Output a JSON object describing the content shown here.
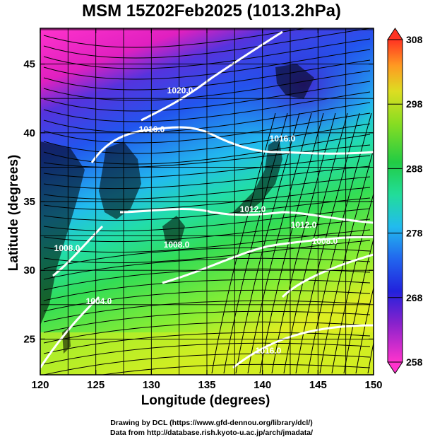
{
  "title": "MSM 15Z02Feb2025 (1013.2hPa)",
  "x_axis": {
    "label": "Longitude (degrees)",
    "ticks": [
      "120",
      "125",
      "130",
      "135",
      "140",
      "145",
      "150"
    ]
  },
  "y_axis": {
    "label": "Latitude  (degrees)",
    "ticks": [
      "25",
      "30",
      "35",
      "40",
      "45"
    ]
  },
  "colorbar": {
    "ticks": [
      "258",
      "268",
      "278",
      "288",
      "298",
      "308"
    ],
    "range": [
      258,
      308
    ]
  },
  "contours": {
    "color": "#ffffff",
    "labels": [
      "1020.0",
      "1016.0",
      "1016.0",
      "1012.0",
      "1008.0",
      "1008.0",
      "1012.0",
      "1008.0",
      "1004.0",
      "1016.0"
    ]
  },
  "credits": {
    "line1": "Drawing by DCL (https://www.gfd-dennou.org/library/dcl/)",
    "line2": "Data from http://database.rish.kyoto-u.ac.jp/arch/jmadata/"
  },
  "colors": {
    "land": "#000000",
    "streamlines": "#000000",
    "gridlines": "#000000"
  }
}
